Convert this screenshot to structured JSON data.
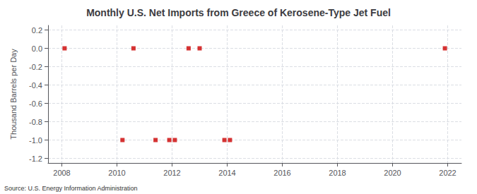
{
  "chart_data": {
    "type": "scatter",
    "title": "Monthly U.S. Net Imports from Greece of Kerosene-Type Jet Fuel",
    "ylabel": "Thousand Barrels per Day",
    "annotations": [
      "Source: U.S. Energy Information Administration"
    ],
    "x": [
      2008.1,
      2010.2,
      2010.6,
      2011.4,
      2011.9,
      2012.1,
      2012.6,
      2013.0,
      2013.9,
      2014.1,
      2021.9
    ],
    "values": [
      0.0,
      -1.0,
      0.0,
      -1.0,
      -1.0,
      -1.0,
      0.0,
      0.0,
      -1.0,
      -1.0,
      0.0
    ],
    "color": "#cc0000",
    "marker": "square",
    "xlim": [
      2007.5,
      2022.5
    ],
    "xticks": [
      2008,
      2010,
      2012,
      2014,
      2016,
      2018,
      2020,
      2022
    ],
    "ylim": [
      -1.25,
      0.25
    ],
    "yticks": [
      0.2,
      {
        "value": 0,
        "label": "0.0"
      },
      -0.2,
      -0.4,
      -0.6,
      -0.8,
      {
        "value": -1,
        "label": "-1.0"
      },
      -1.2
    ],
    "grid": true
  }
}
